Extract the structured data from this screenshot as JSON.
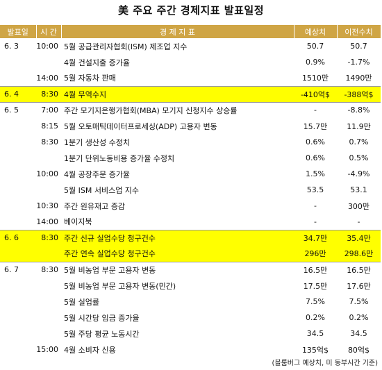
{
  "title": "美 주요 주간 경제지표 발표일정",
  "headers": {
    "date": "발표일",
    "time": "시  간",
    "indicator": "경  제  지  표",
    "forecast": "예상치",
    "previous": "이전수치"
  },
  "colors": {
    "header": "#CFA545",
    "highlight": "#FFFF00"
  },
  "rows": [
    {
      "date": "6. 3",
      "time": "10:00",
      "indicator": "5월 공급관리자협회(ISM) 제조업 지수",
      "forecast": "50.7",
      "previous": "50.7"
    },
    {
      "date": "",
      "time": "",
      "indicator": "4월 건설지출 증가율",
      "forecast": "0.9%",
      "previous": "-1.7%"
    },
    {
      "date": "",
      "time": "14:00",
      "indicator": "5월 자동차 판매",
      "forecast": "1510만",
      "previous": "1490만"
    },
    {
      "date": "6. 4",
      "time": "8:30",
      "indicator": "4월 무역수지",
      "forecast": "-410억$",
      "previous": "-388억$"
    },
    {
      "date": "6. 5",
      "time": "7:00",
      "indicator": "주간 모기지은행가협회(MBA) 모기지 신청지수 상승률",
      "forecast": "-",
      "previous": "-8.8%"
    },
    {
      "date": "",
      "time": "8:15",
      "indicator": "5월 오토매틱데이터프로세싱(ADP) 고용자 변동",
      "forecast": "15.7만",
      "previous": "11.9만"
    },
    {
      "date": "",
      "time": "8:30",
      "indicator": "1분기 생산성 수정치",
      "forecast": "0.6%",
      "previous": "0.7%"
    },
    {
      "date": "",
      "time": "",
      "indicator": "1분기 단위노동비용 증가율 수정치",
      "forecast": "0.6%",
      "previous": "0.5%"
    },
    {
      "date": "",
      "time": "10:00",
      "indicator": "4월 공장주문 증가율",
      "forecast": "1.5%",
      "previous": "-4.9%"
    },
    {
      "date": "",
      "time": "",
      "indicator": "5월 ISM 서비스업 지수",
      "forecast": "53.5",
      "previous": "53.1"
    },
    {
      "date": "",
      "time": "10:30",
      "indicator": "주간 원유재고 증감",
      "forecast": "-",
      "previous": "300만"
    },
    {
      "date": "",
      "time": "14:00",
      "indicator": "베이지북",
      "forecast": "-",
      "previous": "-"
    },
    {
      "date": "6. 6",
      "time": "8:30",
      "indicator": "주간 신규 실업수당 청구건수",
      "forecast": "34.7만",
      "previous": "35.4만"
    },
    {
      "date": "",
      "time": "",
      "indicator": "주간 연속 실업수당 청구건수",
      "forecast": "296만",
      "previous": "298.6만"
    },
    {
      "date": "6. 7",
      "time": "8:30",
      "indicator": "5월 비농업 부문 고용자 변동",
      "forecast": "16.5만",
      "previous": "16.5만"
    },
    {
      "date": "",
      "time": "",
      "indicator": "5월 비농업 부문 고용자 변동(민간)",
      "forecast": "17.5만",
      "previous": "17.6만"
    },
    {
      "date": "",
      "time": "",
      "indicator": "5월 실업률",
      "forecast": "7.5%",
      "previous": "7.5%"
    },
    {
      "date": "",
      "time": "",
      "indicator": "5월 시간당 임금 증가율",
      "forecast": "0.2%",
      "previous": "0.2%"
    },
    {
      "date": "",
      "time": "",
      "indicator": "5월 주당 평균 노동시간",
      "forecast": "34.5",
      "previous": "34.5"
    },
    {
      "date": "",
      "time": "15:00",
      "indicator": "4월 소비자 신용",
      "forecast": "135억$",
      "previous": "80억$"
    }
  ],
  "footnote": "(블룸버그 예상치, 미 동부시간 기준)"
}
